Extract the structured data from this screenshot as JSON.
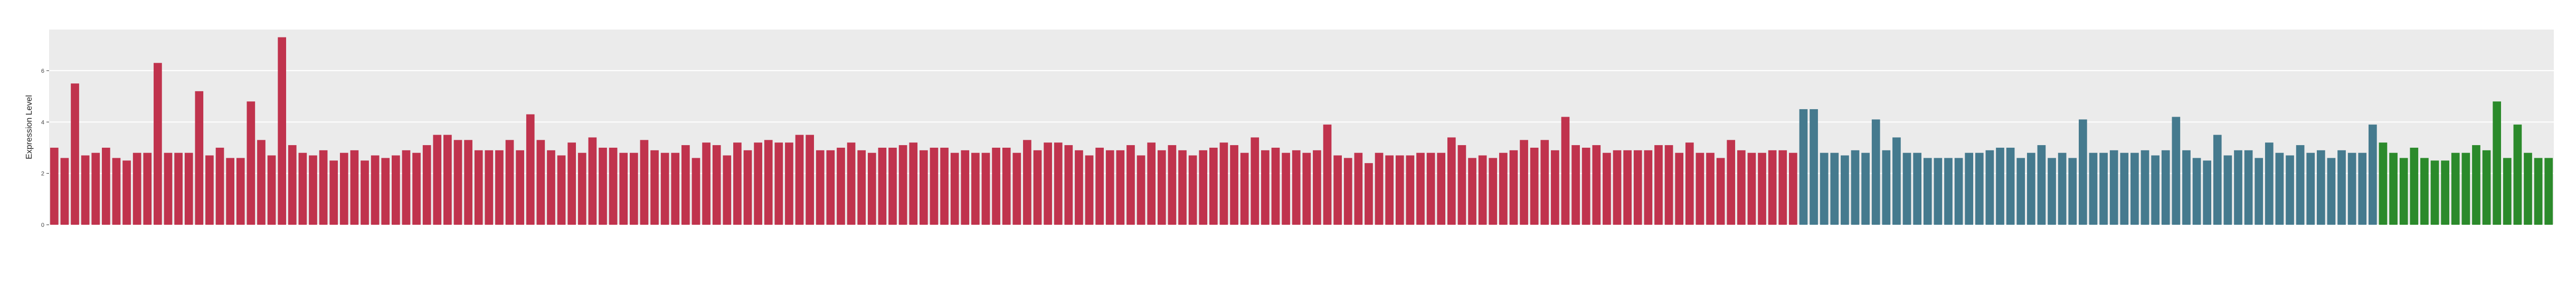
{
  "chart_data": {
    "type": "bar",
    "y_label": "Expression Level",
    "categories": [
      null,
      null,
      null,
      null,
      null,
      null,
      null,
      null,
      null,
      null,
      null,
      null,
      null,
      null,
      null,
      null,
      null,
      null,
      null,
      null,
      null,
      null,
      null,
      null,
      null,
      null,
      null,
      null,
      null,
      null,
      null,
      null,
      null,
      null,
      null,
      null,
      null,
      null,
      null,
      null,
      null,
      null,
      null,
      null,
      null,
      null,
      null,
      null,
      null,
      null,
      null,
      null,
      null,
      null,
      null,
      null,
      null,
      null,
      null,
      null,
      null,
      null,
      null,
      null,
      null,
      null,
      null,
      null,
      null,
      null,
      null,
      null,
      null,
      null,
      null,
      null,
      null,
      null,
      null,
      null,
      null,
      null,
      null,
      null,
      null,
      null,
      null,
      null,
      null,
      null,
      null,
      null,
      null,
      null,
      null,
      null,
      null,
      null,
      null,
      null,
      null,
      null,
      null,
      null,
      null,
      null,
      null,
      null,
      null,
      null,
      null,
      null,
      null,
      null,
      null,
      null,
      null,
      null,
      null,
      null,
      null,
      null,
      null,
      null,
      null,
      null,
      null,
      null,
      null,
      null,
      null,
      null,
      null,
      null,
      null,
      null,
      null,
      null,
      null,
      null,
      null,
      null,
      null,
      null,
      null,
      null,
      null,
      null,
      null,
      null,
      null,
      null,
      null,
      null,
      null,
      null,
      null,
      null,
      null,
      null,
      null,
      null,
      null,
      null,
      null,
      null,
      null,
      null,
      null,
      null,
      null,
      null,
      null,
      null,
      null,
      null,
      null,
      null,
      null,
      null,
      null,
      null,
      null,
      null,
      null,
      null,
      null,
      null,
      null,
      null,
      null,
      null,
      null,
      null,
      null,
      null,
      null,
      null,
      null,
      null,
      null,
      null,
      null,
      null,
      null,
      null,
      null,
      null,
      null,
      null,
      null,
      null,
      null,
      null,
      null,
      null,
      null,
      null,
      null,
      null,
      null,
      null,
      null,
      null,
      null,
      null,
      null,
      null,
      null,
      null,
      null,
      null,
      null,
      null,
      null,
      null,
      null,
      null,
      null,
      null,
      null,
      null
    ],
    "values": [
      3.0,
      2.6,
      5.5,
      2.7,
      2.8,
      3.0,
      2.6,
      2.5,
      2.8,
      2.8,
      6.3,
      2.8,
      2.8,
      2.8,
      5.2,
      2.7,
      3.0,
      2.6,
      2.6,
      4.8,
      3.3,
      2.7,
      7.3,
      3.1,
      2.8,
      2.7,
      2.9,
      2.5,
      2.8,
      2.9,
      2.5,
      2.7,
      2.6,
      2.7,
      2.9,
      2.8,
      3.1,
      3.5,
      3.5,
      3.3,
      3.3,
      2.9,
      2.9,
      2.9,
      3.3,
      2.9,
      4.3,
      3.3,
      2.9,
      2.7,
      3.2,
      2.8,
      3.4,
      3.0,
      3.0,
      2.8,
      2.8,
      3.3,
      2.9,
      2.8,
      2.8,
      3.1,
      2.6,
      3.2,
      3.1,
      2.7,
      3.2,
      2.9,
      3.2,
      3.3,
      3.2,
      3.2,
      3.5,
      3.5,
      2.9,
      2.9,
      3.0,
      3.2,
      2.9,
      2.8,
      3.0,
      3.0,
      3.1,
      3.2,
      2.9,
      3.0,
      3.0,
      2.8,
      2.9,
      2.8,
      2.8,
      3.0,
      3.0,
      2.8,
      3.3,
      2.9,
      3.2,
      3.2,
      3.1,
      2.9,
      2.7,
      3.0,
      2.9,
      2.9,
      3.1,
      2.7,
      3.2,
      2.9,
      3.1,
      2.9,
      2.7,
      2.9,
      3.0,
      3.2,
      3.1,
      2.8,
      3.4,
      2.9,
      3.0,
      2.8,
      2.9,
      2.8,
      2.9,
      3.9,
      2.7,
      2.6,
      2.8,
      2.4,
      2.8,
      2.7,
      2.7,
      2.7,
      2.8,
      2.8,
      2.8,
      3.4,
      3.1,
      2.6,
      2.7,
      2.6,
      2.8,
      2.9,
      3.3,
      3.0,
      3.3,
      2.9,
      4.2,
      3.1,
      3.0,
      3.1,
      2.8,
      2.9,
      2.9,
      2.9,
      2.9,
      3.1,
      3.1,
      2.8,
      3.2,
      2.8,
      2.8,
      2.6,
      3.3,
      2.9,
      2.8,
      2.8,
      2.9,
      2.9,
      2.8,
      4.5,
      4.5,
      2.8,
      2.8,
      2.7,
      2.9,
      2.8,
      4.1,
      2.9,
      3.4,
      2.8,
      2.8,
      2.6,
      2.6,
      2.6,
      2.6,
      2.8,
      2.8,
      2.9,
      3.0,
      3.0,
      2.6,
      2.8,
      3.1,
      2.6,
      2.8,
      2.6,
      4.1,
      2.8,
      2.8,
      2.9,
      2.8,
      2.8,
      2.9,
      2.7,
      2.9,
      4.2,
      2.9,
      2.6,
      2.5,
      3.5,
      2.7,
      2.9,
      2.9,
      2.6,
      3.2,
      2.8,
      2.7,
      3.1,
      2.8,
      2.9,
      2.6,
      2.9,
      2.8,
      2.8,
      3.9,
      3.2,
      2.8,
      2.6,
      3.0,
      2.6,
      2.5,
      2.5,
      2.8,
      2.8,
      3.1,
      2.9,
      4.8,
      2.6,
      3.9,
      2.8,
      2.6,
      2.6
    ],
    "colors": [
      "#c0334d",
      "#c0334d",
      "#c0334d",
      "#c0334d",
      "#c0334d",
      "#c0334d",
      "#c0334d",
      "#c0334d",
      "#c0334d",
      "#c0334d",
      "#c0334d",
      "#c0334d",
      "#c0334d",
      "#c0334d",
      "#c0334d",
      "#c0334d",
      "#c0334d",
      "#c0334d",
      "#c0334d",
      "#c0334d",
      "#c0334d",
      "#c0334d",
      "#c0334d",
      "#c0334d",
      "#c0334d",
      "#c0334d",
      "#c0334d",
      "#c0334d",
      "#c0334d",
      "#c0334d",
      "#c0334d",
      "#c0334d",
      "#c0334d",
      "#c0334d",
      "#c0334d",
      "#c0334d",
      "#c0334d",
      "#c0334d",
      "#c0334d",
      "#c0334d",
      "#c0334d",
      "#c0334d",
      "#c0334d",
      "#c0334d",
      "#c0334d",
      "#c0334d",
      "#c0334d",
      "#c0334d",
      "#c0334d",
      "#c0334d",
      "#c0334d",
      "#c0334d",
      "#c0334d",
      "#c0334d",
      "#c0334d",
      "#c0334d",
      "#c0334d",
      "#c0334d",
      "#c0334d",
      "#c0334d",
      "#c0334d",
      "#c0334d",
      "#c0334d",
      "#c0334d",
      "#c0334d",
      "#c0334d",
      "#c0334d",
      "#c0334d",
      "#c0334d",
      "#c0334d",
      "#c0334d",
      "#c0334d",
      "#c0334d",
      "#c0334d",
      "#c0334d",
      "#c0334d",
      "#c0334d",
      "#c0334d",
      "#c0334d",
      "#c0334d",
      "#c0334d",
      "#c0334d",
      "#c0334d",
      "#c0334d",
      "#c0334d",
      "#c0334d",
      "#c0334d",
      "#c0334d",
      "#c0334d",
      "#c0334d",
      "#c0334d",
      "#c0334d",
      "#c0334d",
      "#c0334d",
      "#c0334d",
      "#c0334d",
      "#c0334d",
      "#c0334d",
      "#c0334d",
      "#c0334d",
      "#c0334d",
      "#c0334d",
      "#c0334d",
      "#c0334d",
      "#c0334d",
      "#c0334d",
      "#c0334d",
      "#c0334d",
      "#c0334d",
      "#c0334d",
      "#c0334d",
      "#c0334d",
      "#c0334d",
      "#c0334d",
      "#c0334d",
      "#c0334d",
      "#c0334d",
      "#c0334d",
      "#c0334d",
      "#c0334d",
      "#c0334d",
      "#c0334d",
      "#c0334d",
      "#c0334d",
      "#c0334d",
      "#c0334d",
      "#c0334d",
      "#c0334d",
      "#c0334d",
      "#c0334d",
      "#c0334d",
      "#c0334d",
      "#c0334d",
      "#c0334d",
      "#c0334d",
      "#c0334d",
      "#c0334d",
      "#c0334d",
      "#c0334d",
      "#c0334d",
      "#c0334d",
      "#c0334d",
      "#c0334d",
      "#c0334d",
      "#c0334d",
      "#c0334d",
      "#c0334d",
      "#c0334d",
      "#c0334d",
      "#c0334d",
      "#c0334d",
      "#c0334d",
      "#c0334d",
      "#c0334d",
      "#c0334d",
      "#c0334d",
      "#c0334d",
      "#c0334d",
      "#c0334d",
      "#c0334d",
      "#c0334d",
      "#c0334d",
      "#c0334d",
      "#c0334d",
      "#c0334d",
      "#c0334d",
      "#c0334d",
      "#c0334d",
      "#c0334d",
      "#457a8e",
      "#457a8e",
      "#457a8e",
      "#457a8e",
      "#457a8e",
      "#457a8e",
      "#457a8e",
      "#457a8e",
      "#457a8e",
      "#457a8e",
      "#457a8e",
      "#457a8e",
      "#457a8e",
      "#457a8e",
      "#457a8e",
      "#457a8e",
      "#457a8e",
      "#457a8e",
      "#457a8e",
      "#457a8e",
      "#457a8e",
      "#457a8e",
      "#457a8e",
      "#457a8e",
      "#457a8e",
      "#457a8e",
      "#457a8e",
      "#457a8e",
      "#457a8e",
      "#457a8e",
      "#457a8e",
      "#457a8e",
      "#457a8e",
      "#457a8e",
      "#457a8e",
      "#457a8e",
      "#457a8e",
      "#457a8e",
      "#457a8e",
      "#457a8e",
      "#457a8e",
      "#457a8e",
      "#457a8e",
      "#457a8e",
      "#457a8e",
      "#457a8e",
      "#457a8e",
      "#457a8e",
      "#457a8e",
      "#457a8e",
      "#457a8e",
      "#457a8e",
      "#457a8e",
      "#457a8e",
      "#457a8e",
      "#457a8e",
      "#2b8a2b",
      "#2b8a2b",
      "#2b8a2b",
      "#2b8a2b",
      "#2b8a2b",
      "#2b8a2b",
      "#2b8a2b",
      "#2b8a2b",
      "#2b8a2b",
      "#2b8a2b",
      "#2b8a2b",
      "#2b8a2b",
      "#2b8a2b",
      "#2b8a2b",
      "#2b8a2b",
      "#2b8a2b",
      "#2b8a2b"
    ],
    "ylim": [
      0,
      7.6
    ],
    "yticks": [
      0,
      2,
      4,
      6
    ],
    "grid": true
  }
}
